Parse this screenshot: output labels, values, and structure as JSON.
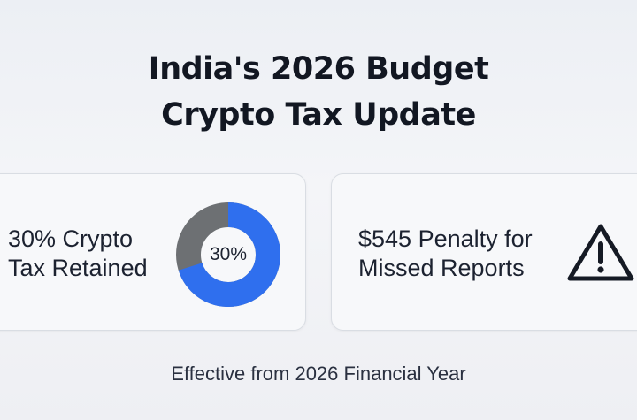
{
  "title": {
    "line1": "India's 2026 Budget",
    "line2": "Crypto Tax Update"
  },
  "cards": {
    "tax": {
      "line1": "30% Crypto",
      "line2": "Tax Retained",
      "donut_label": "30%",
      "donut_fraction": 0.7,
      "colors": {
        "primary": "#2f6fee",
        "secondary": "#6d7073"
      }
    },
    "penalty": {
      "line1": "$545 Penalty for",
      "line2": "Missed Reports",
      "icon": "warning-icon"
    }
  },
  "footer": {
    "text": "Effective from 2026 Financial Year"
  }
}
